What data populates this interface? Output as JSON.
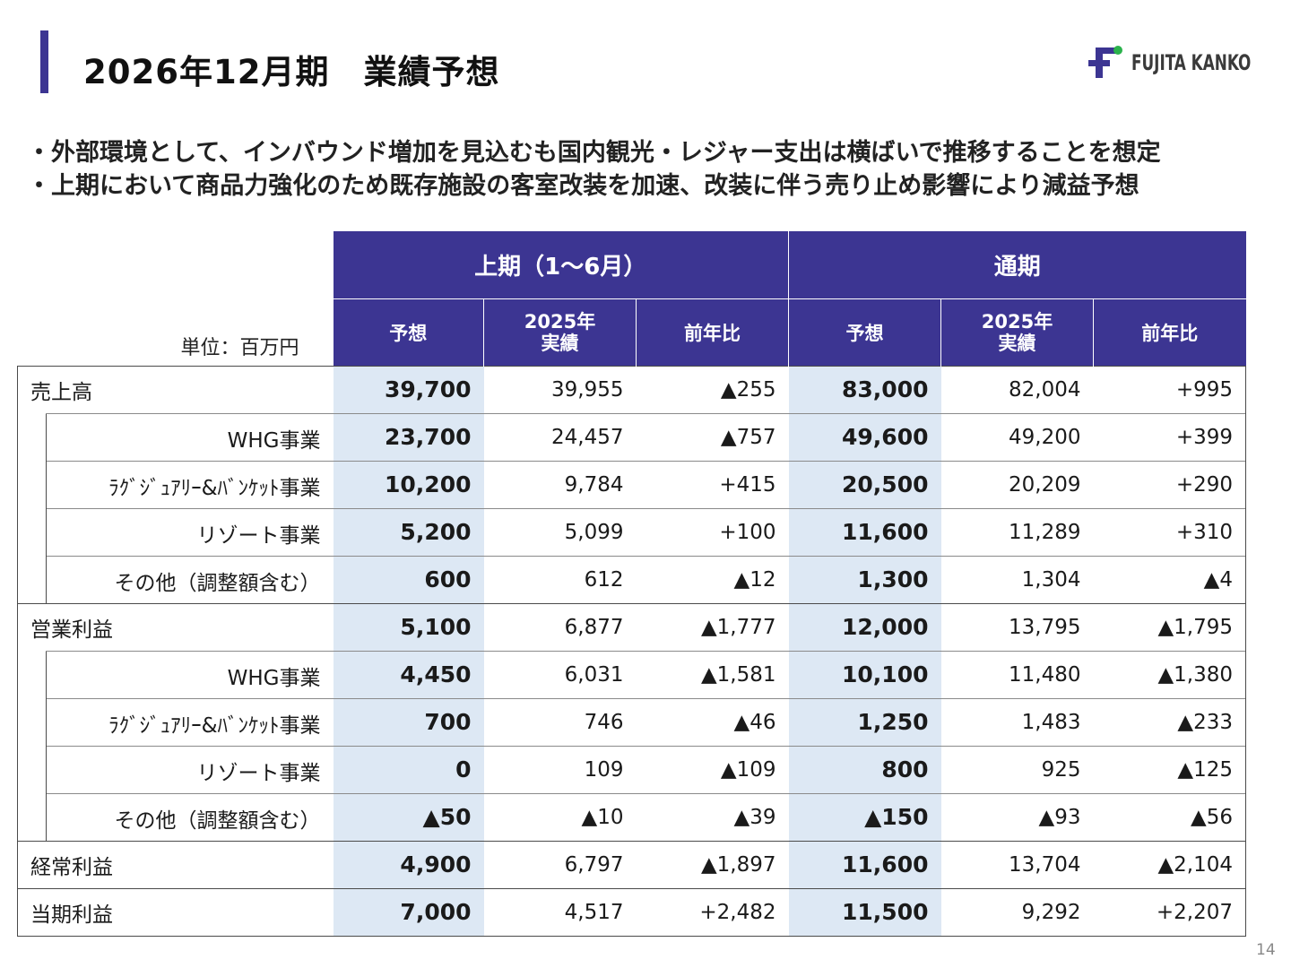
{
  "header": {
    "title": "2026年12月期　業績予想",
    "logo_text": "FUJITA KANKO",
    "colors": {
      "accent": "#3c3592",
      "logo_green": "#2bb24c",
      "shade": "#dde8f4"
    }
  },
  "bullets": [
    "・外部環境として、インバウンド増加を見込むも国内観光・レジャー支出は横ばいで推移することを想定",
    "・上期において商品力強化のため既存施設の客室改装を加速、改装に伴う売り止め影響により減益予想"
  ],
  "table": {
    "unit": "単位：百万円",
    "group_h1": "上期（1～6月）",
    "group_full": "通期",
    "col_forecast": "予想",
    "col_actual_l1": "2025年",
    "col_actual_l2": "実績",
    "col_yoy": "前年比",
    "rows": [
      {
        "label": "売上高",
        "sub": false,
        "v": [
          "39,700",
          "39,955",
          "▲255",
          "83,000",
          "82,004",
          "+995"
        ]
      },
      {
        "label": "WHG事業",
        "sub": true,
        "v": [
          "23,700",
          "24,457",
          "▲757",
          "49,600",
          "49,200",
          "+399"
        ]
      },
      {
        "label": "ﾗｸﾞｼﾞｭｱﾘｰ&ﾊﾞﾝｹｯﾄ事業",
        "sub": true,
        "v": [
          "10,200",
          "9,784",
          "+415",
          "20,500",
          "20,209",
          "+290"
        ]
      },
      {
        "label": "リゾート事業",
        "sub": true,
        "v": [
          "5,200",
          "5,099",
          "+100",
          "11,600",
          "11,289",
          "+310"
        ]
      },
      {
        "label": "その他（調整額含む）",
        "sub": true,
        "v": [
          "600",
          "612",
          "▲12",
          "1,300",
          "1,304",
          "▲4"
        ]
      },
      {
        "label": "営業利益",
        "sub": false,
        "v": [
          "5,100",
          "6,877",
          "▲1,777",
          "12,000",
          "13,795",
          "▲1,795"
        ]
      },
      {
        "label": "WHG事業",
        "sub": true,
        "v": [
          "4,450",
          "6,031",
          "▲1,581",
          "10,100",
          "11,480",
          "▲1,380"
        ]
      },
      {
        "label": "ﾗｸﾞｼﾞｭｱﾘｰ&ﾊﾞﾝｹｯﾄ事業",
        "sub": true,
        "v": [
          "700",
          "746",
          "▲46",
          "1,250",
          "1,483",
          "▲233"
        ]
      },
      {
        "label": "リゾート事業",
        "sub": true,
        "v": [
          "0",
          "109",
          "▲109",
          "800",
          "925",
          "▲125"
        ]
      },
      {
        "label": "その他（調整額含む）",
        "sub": true,
        "v": [
          "▲50",
          "▲10",
          "▲39",
          "▲150",
          "▲93",
          "▲56"
        ]
      },
      {
        "label": "経常利益",
        "sub": false,
        "v": [
          "4,900",
          "6,797",
          "▲1,897",
          "11,600",
          "13,704",
          "▲2,104"
        ]
      },
      {
        "label": "当期利益",
        "sub": false,
        "v": [
          "7,000",
          "4,517",
          "+2,482",
          "11,500",
          "9,292",
          "+2,207"
        ]
      }
    ]
  },
  "page_number": "14"
}
